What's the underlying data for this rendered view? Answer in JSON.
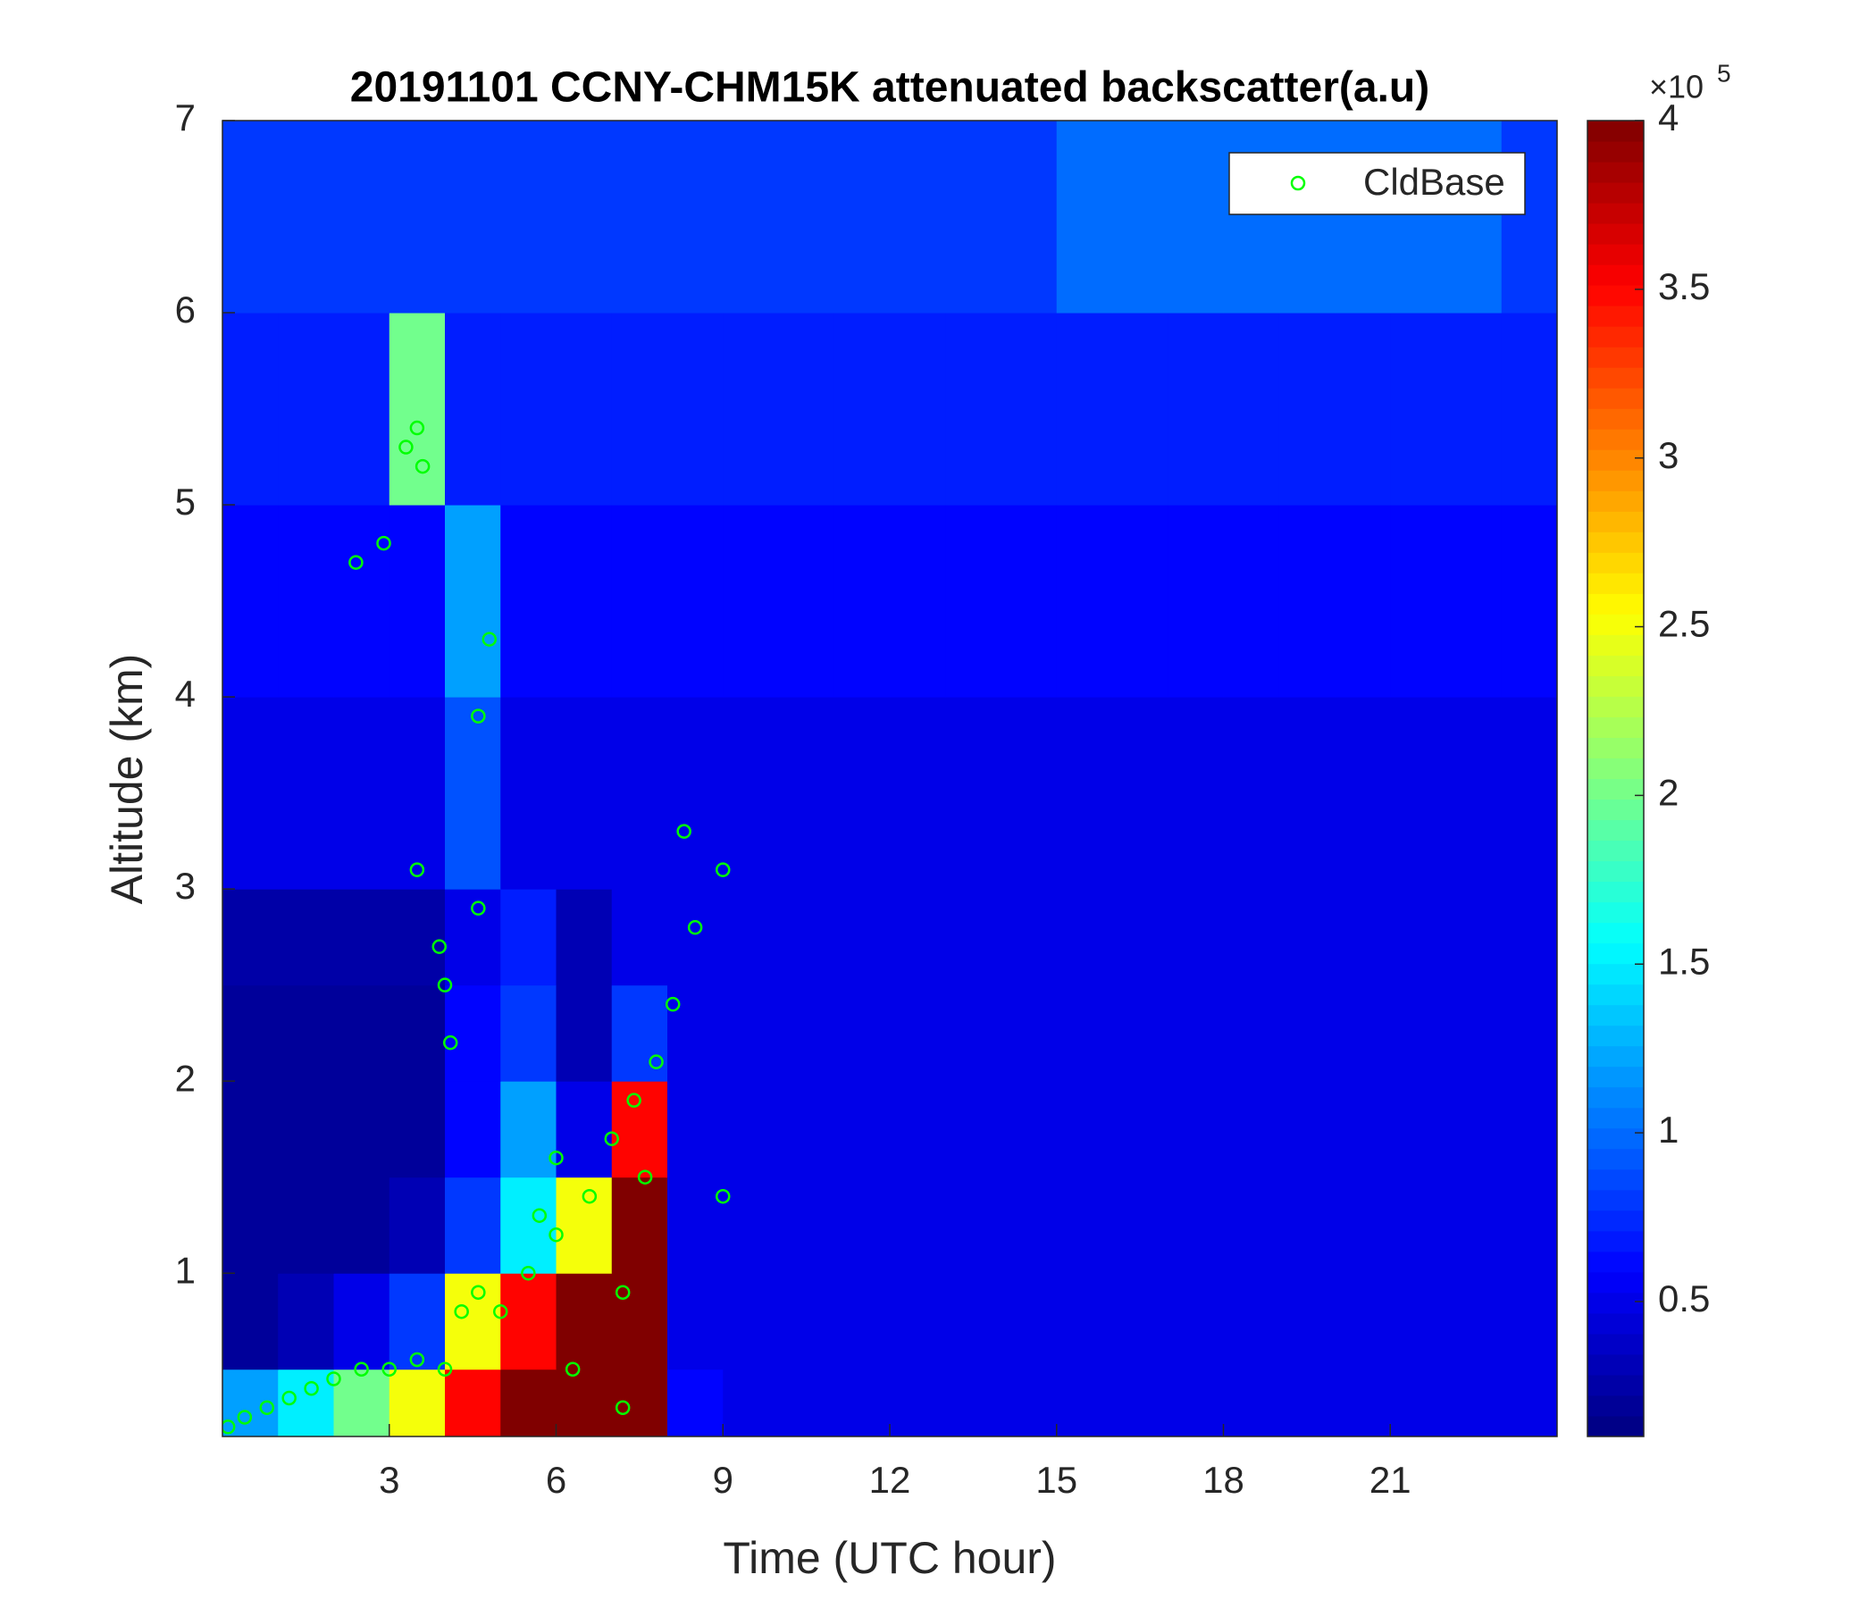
{
  "chart_data": {
    "type": "heatmap",
    "title": "20191101 CCNY-CHM15K attenuated backscatter(a.u)",
    "xlabel": "Time (UTC hour)",
    "ylabel": "Altitude (km)",
    "xlim": [
      0,
      24
    ],
    "ylim": [
      0.15,
      7
    ],
    "xticks": [
      3,
      6,
      9,
      12,
      15,
      18,
      21
    ],
    "yticks": [
      1,
      2,
      3,
      4,
      5,
      6,
      7
    ],
    "colormap": "jet",
    "clim": [
      0.1,
      4
    ],
    "cticks": [
      0.5,
      1,
      1.5,
      2,
      2.5,
      3,
      3.5,
      4
    ],
    "colorbar_multiplier": "×10",
    "colorbar_exponent": "5",
    "x_edges": [
      0,
      1,
      2,
      3,
      4,
      5,
      6,
      7,
      8,
      9,
      10,
      11,
      12,
      13,
      14,
      15,
      16,
      17,
      18,
      19,
      20,
      21,
      22,
      23,
      24
    ],
    "y_edges": [
      0.15,
      0.5,
      1,
      1.5,
      2,
      2.5,
      3,
      4,
      5,
      6,
      7
    ],
    "values": [
      [
        1.2,
        1.5,
        2.0,
        2.5,
        3.5,
        4,
        4,
        4,
        0.6,
        0.5,
        0.5,
        0.5,
        0.5,
        0.5,
        0.5,
        0.5,
        0.5,
        0.5,
        0.5,
        0.5,
        0.5,
        0.5,
        0.5,
        0.5
      ],
      [
        0.2,
        0.3,
        0.5,
        0.8,
        2.5,
        3.5,
        4,
        4,
        0.5,
        0.5,
        0.5,
        0.5,
        0.5,
        0.5,
        0.5,
        0.5,
        0.5,
        0.5,
        0.5,
        0.5,
        0.5,
        0.5,
        0.5,
        0.5
      ],
      [
        0.2,
        0.2,
        0.2,
        0.3,
        0.8,
        1.5,
        2.5,
        4,
        0.5,
        0.5,
        0.5,
        0.5,
        0.5,
        0.5,
        0.5,
        0.5,
        0.5,
        0.5,
        0.5,
        0.5,
        0.5,
        0.5,
        0.5,
        0.5
      ],
      [
        0.2,
        0.2,
        0.2,
        0.2,
        0.6,
        1.2,
        0.5,
        3.5,
        0.5,
        0.5,
        0.5,
        0.5,
        0.5,
        0.5,
        0.5,
        0.5,
        0.5,
        0.5,
        0.5,
        0.5,
        0.5,
        0.5,
        0.5,
        0.5
      ],
      [
        0.2,
        0.2,
        0.2,
        0.2,
        0.6,
        0.8,
        0.3,
        0.8,
        0.5,
        0.5,
        0.5,
        0.5,
        0.5,
        0.5,
        0.5,
        0.5,
        0.5,
        0.5,
        0.5,
        0.5,
        0.5,
        0.5,
        0.5,
        0.5
      ],
      [
        0.25,
        0.25,
        0.25,
        0.25,
        0.5,
        0.7,
        0.3,
        0.5,
        0.5,
        0.5,
        0.5,
        0.5,
        0.5,
        0.5,
        0.5,
        0.5,
        0.5,
        0.5,
        0.5,
        0.5,
        0.5,
        0.5,
        0.5,
        0.5
      ],
      [
        0.5,
        0.5,
        0.5,
        0.5,
        0.9,
        0.5,
        0.5,
        0.5,
        0.5,
        0.5,
        0.5,
        0.5,
        0.5,
        0.5,
        0.5,
        0.5,
        0.5,
        0.5,
        0.5,
        0.5,
        0.5,
        0.5,
        0.5,
        0.5
      ],
      [
        0.6,
        0.6,
        0.6,
        0.6,
        1.2,
        0.6,
        0.6,
        0.6,
        0.6,
        0.6,
        0.6,
        0.6,
        0.6,
        0.6,
        0.6,
        0.6,
        0.6,
        0.6,
        0.6,
        0.6,
        0.6,
        0.6,
        0.6,
        0.6
      ],
      [
        0.7,
        0.7,
        0.7,
        2.0,
        0.7,
        0.7,
        0.7,
        0.7,
        0.7,
        0.7,
        0.7,
        0.7,
        0.7,
        0.7,
        0.7,
        0.7,
        0.7,
        0.7,
        0.7,
        0.7,
        0.7,
        0.7,
        0.7,
        0.7
      ],
      [
        0.8,
        0.8,
        0.8,
        0.8,
        0.8,
        0.8,
        0.8,
        0.8,
        0.8,
        0.8,
        0.8,
        0.8,
        0.8,
        0.8,
        0.8,
        1.0,
        1.0,
        1.0,
        1.0,
        1.0,
        1.0,
        1.0,
        1.0,
        0.8
      ]
    ],
    "series": [
      {
        "name": "CldBase",
        "color": "#00ff00",
        "marker": "circle",
        "x": [
          0.1,
          0.4,
          0.8,
          1.2,
          1.6,
          2.0,
          2.5,
          3.0,
          3.5,
          4.0,
          4.3,
          4.6,
          5.0,
          5.5,
          6.0,
          6.3,
          6.6,
          7.0,
          7.4,
          7.8,
          8.1,
          8.3,
          8.5,
          9.0,
          9.0,
          4.0,
          3.9,
          4.1,
          3.5,
          4.6,
          4.8,
          4.6,
          3.3,
          3.5,
          3.6,
          2.4,
          2.9,
          7.2,
          7.6,
          6.0,
          5.7,
          7.2
        ],
        "y": [
          0.2,
          0.25,
          0.3,
          0.35,
          0.4,
          0.45,
          0.5,
          0.5,
          0.55,
          0.5,
          0.8,
          0.9,
          0.8,
          1.0,
          1.2,
          0.5,
          1.4,
          1.7,
          1.9,
          2.1,
          2.4,
          3.3,
          2.8,
          3.1,
          1.4,
          2.5,
          2.7,
          2.2,
          3.1,
          3.9,
          4.3,
          2.9,
          5.3,
          5.4,
          5.2,
          4.7,
          4.8,
          0.9,
          1.5,
          1.6,
          1.3,
          0.3
        ]
      }
    ]
  }
}
